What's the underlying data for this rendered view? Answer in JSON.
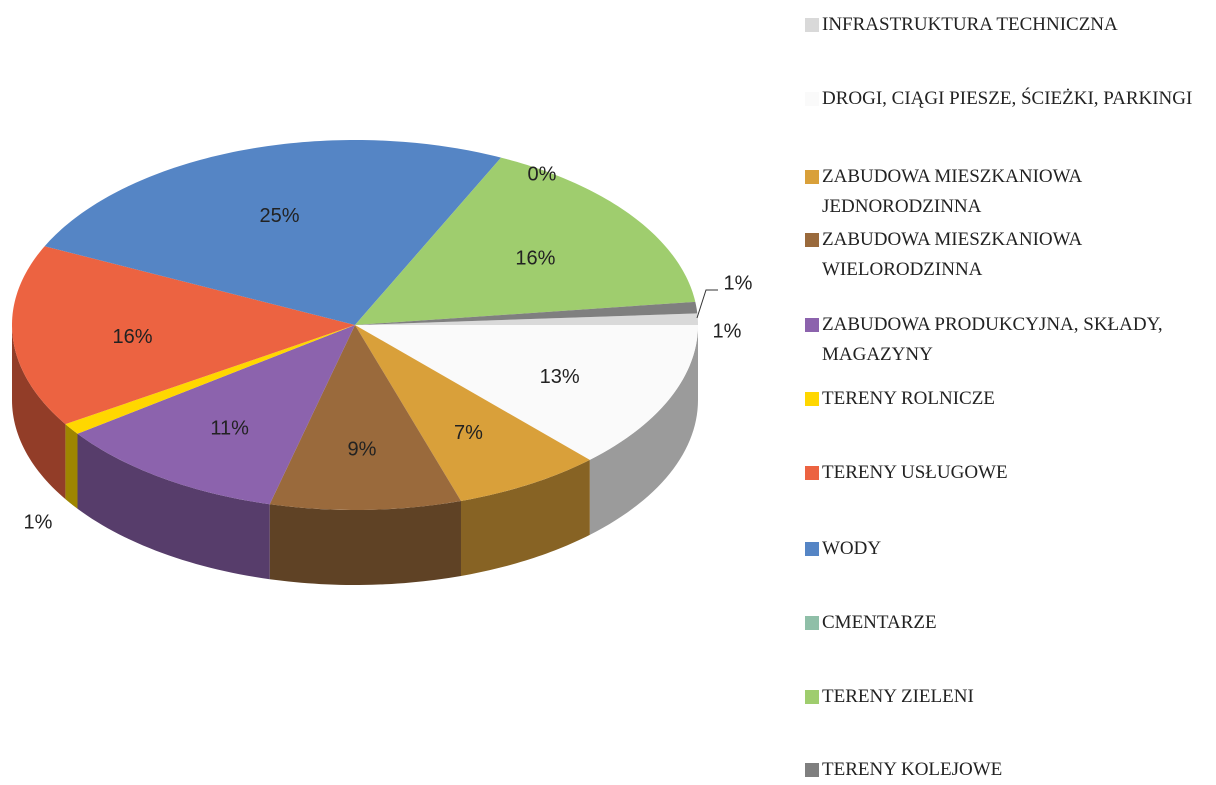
{
  "chart_data": {
    "type": "pie",
    "categories": [
      "INFRASTRUKTURA TECHNICZNA",
      "DROGI, CIĄGI PIESZE, ŚCIEŻKI, PARKINGI",
      "ZABUDOWA MIESZKANIOWA JEDNORODZINNA",
      "ZABUDOWA MIESZKANIOWA WIELORODZINNA",
      "ZABUDOWA PRODUKCYJNA, SKŁADY, MAGAZYNY",
      "TERENY ROLNICZE",
      "TERENY USŁUGOWE",
      "WODY",
      "CMENTARZE",
      "TERENY ZIELENI",
      "TERENY KOLEJOWE"
    ],
    "values": [
      1,
      13,
      7,
      9,
      11,
      1,
      16,
      25,
      0,
      16,
      1
    ],
    "value_labels": [
      "1%",
      "13%",
      "7%",
      "9%",
      "11%",
      "1%",
      "16%",
      "25%",
      "0%",
      "16%",
      "1%"
    ],
    "colors": [
      "#d9d9d9",
      "#fafafa",
      "#d9a03a",
      "#9a6a3c",
      "#8c63ad",
      "#ffd700",
      "#ec6341",
      "#5585c5",
      "#8fbfa8",
      "#9fcd6e",
      "#7f7f7f"
    ],
    "legend": "right"
  }
}
